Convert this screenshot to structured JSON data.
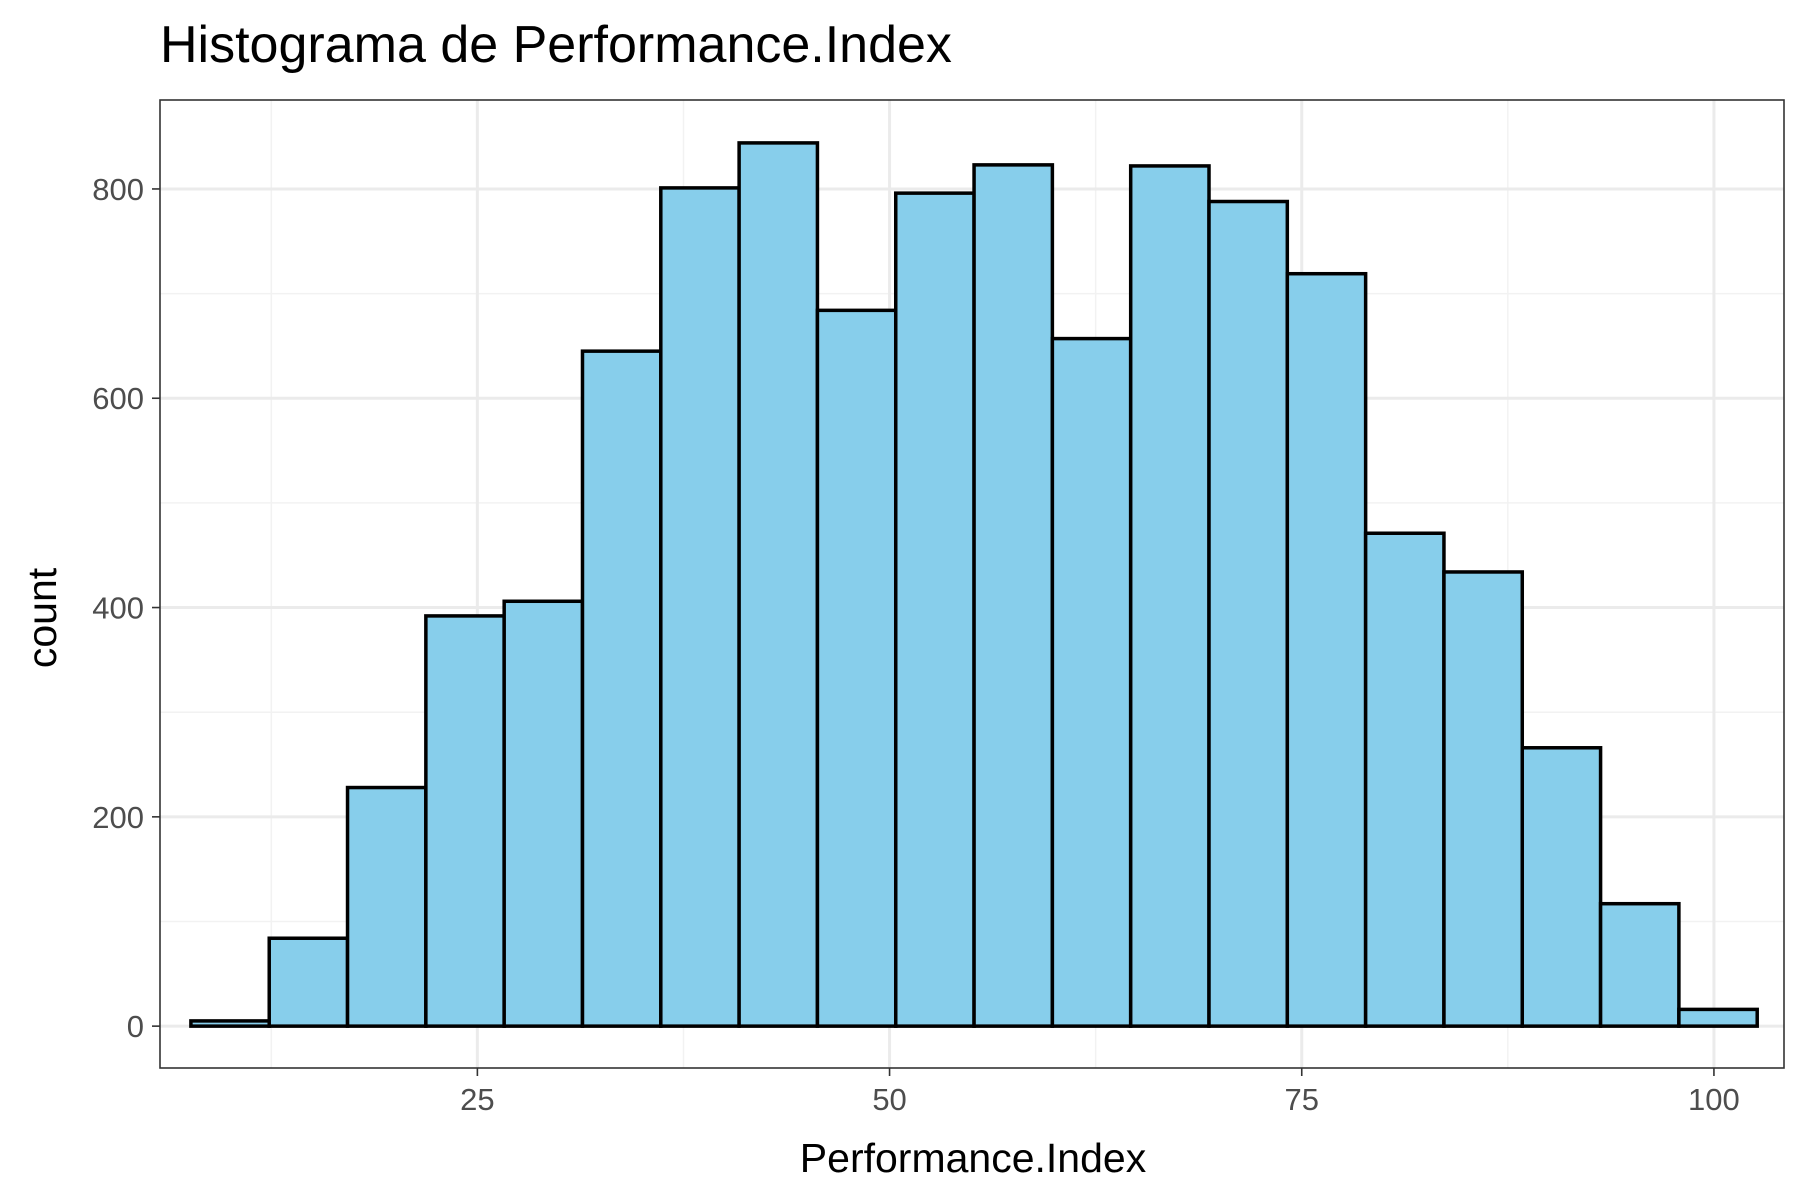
{
  "chart_data": {
    "type": "bar",
    "title": "Histograma de Performance.Index",
    "xlabel": "Performance.Index",
    "ylabel": "count",
    "xlim": [
      5.75,
      104.25
    ],
    "ylim": [
      -40,
      885
    ],
    "x_ticks": [
      25,
      50,
      75,
      100
    ],
    "x_tick_labels": [
      "25",
      "50",
      "75",
      "100"
    ],
    "x_minor_grid": [
      12.5,
      37.5,
      62.5,
      87.5
    ],
    "y_ticks": [
      0,
      200,
      400,
      600,
      800
    ],
    "y_tick_labels": [
      "0",
      "200",
      "400",
      "600",
      "800"
    ],
    "y_minor_grid": [
      100,
      300,
      500,
      700
    ],
    "bin_width": 4.75,
    "bin_centers": [
      10,
      14.75,
      19.5,
      24.25,
      29,
      33.75,
      38.5,
      43.25,
      48,
      52.75,
      57.5,
      62.25,
      67,
      71.75,
      76.5,
      81.25,
      86,
      90.75,
      95.5,
      100.25
    ],
    "values": [
      5,
      84,
      228,
      392,
      406,
      645,
      801,
      844,
      684,
      796,
      823,
      657,
      822,
      788,
      719,
      471,
      434,
      266,
      117,
      16
    ],
    "grid": true,
    "theme": "bw",
    "colors": {
      "bar_fill": "#87CEEB",
      "bar_stroke": "#000000",
      "grid_major": "#EBEBEB",
      "grid_minor": "#F2F2F2",
      "panel_border": "#333333",
      "tick_label": "#4D4D4D"
    }
  }
}
